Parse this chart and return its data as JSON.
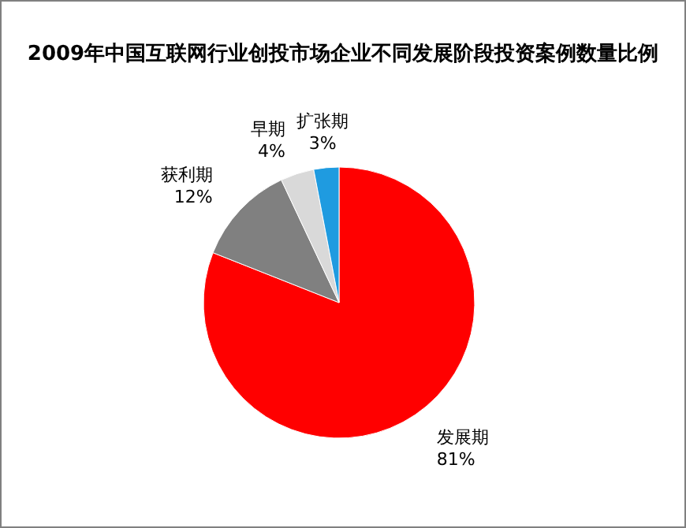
{
  "chart_data": {
    "type": "pie",
    "title": "2009年中国互联网行业创投市场企业不同发展阶段投资案例数量比例",
    "categories": [
      "发展期",
      "获利期",
      "早期",
      "扩张期"
    ],
    "values": [
      81,
      12,
      4,
      3
    ],
    "colors": [
      "#ff0000",
      "#808080",
      "#d9d9d9",
      "#1f9be0"
    ],
    "value_labels": [
      "81%",
      "12%",
      "4%",
      "3%"
    ],
    "legend": false
  }
}
